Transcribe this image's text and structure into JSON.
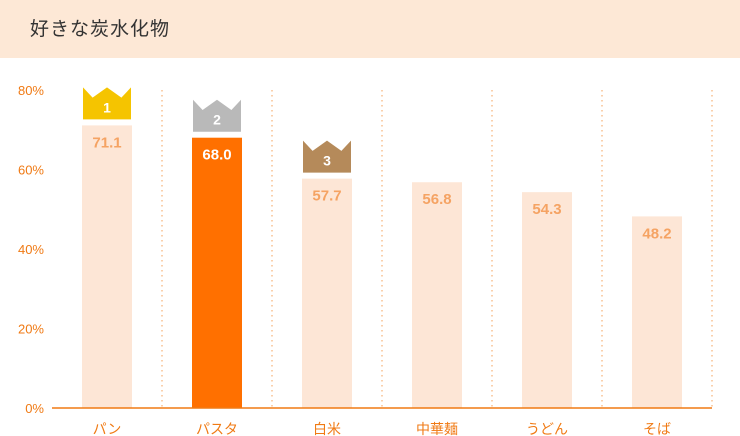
{
  "header": {
    "title": "好きな炭水化物"
  },
  "colors": {
    "accent": "#ff7000",
    "bar_light": "#fde6d6",
    "label_light": "#f5a363",
    "axis": "#f07a14",
    "crown_gold": "#f5c400",
    "crown_silver": "#b9b9b9",
    "crown_bronze": "#b58a5a"
  },
  "chart_data": {
    "type": "bar",
    "title": "好きな炭水化物",
    "categories": [
      "パン",
      "パスタ",
      "白米",
      "中華麺",
      "うどん",
      "そば"
    ],
    "values": [
      71.1,
      68.0,
      57.7,
      56.8,
      54.3,
      48.2
    ],
    "value_labels": [
      "71.1",
      "68.0",
      "57.7",
      "56.8",
      "54.3",
      "48.2"
    ],
    "highlight_index": 1,
    "ranks": [
      {
        "index": 0,
        "label": "1",
        "medal": "gold"
      },
      {
        "index": 1,
        "label": "2",
        "medal": "silver"
      },
      {
        "index": 2,
        "label": "3",
        "medal": "bronze"
      }
    ],
    "ylim": [
      0,
      80
    ],
    "yticks": [
      {
        "value": 0,
        "label": "0%"
      },
      {
        "value": 20,
        "label": "20%"
      },
      {
        "value": 40,
        "label": "40%"
      },
      {
        "value": 60,
        "label": "60%"
      },
      {
        "value": 80,
        "label": "80%"
      }
    ],
    "grid": "vertical dotted separators"
  }
}
